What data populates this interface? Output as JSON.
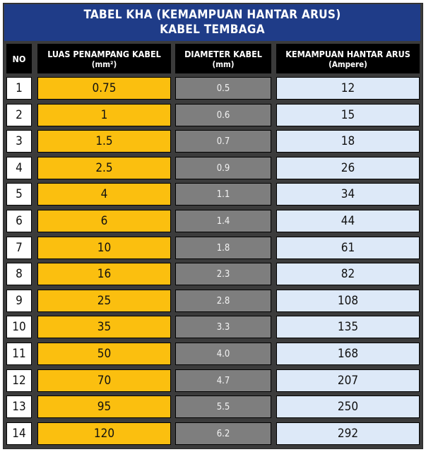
{
  "title": {
    "line1": "TABEL KHA (KEMAMPUAN HANTAR ARUS)",
    "line2": "KABEL TEMBAGA"
  },
  "headers": {
    "no": "NO",
    "luas": "LUAS PENAMPANG KABEL",
    "luas_unit": "(mm²)",
    "diameter": "DIAMETER KABEL",
    "diameter_unit": "(mm)",
    "kha": "KEMAMPUAN HANTAR ARUS",
    "kha_unit": "(Ampere)"
  },
  "colors": {
    "title_bg": "#1f3c88",
    "header_bg": "#000000",
    "luas_col": "#fbbf0f",
    "diameter_col": "#7e7e7e",
    "kha_col": "#dde9f8"
  },
  "rows": [
    {
      "no": "1",
      "luas": "0.75",
      "diameter": "0.5",
      "kha": "12"
    },
    {
      "no": "2",
      "luas": "1",
      "diameter": "0.6",
      "kha": "15"
    },
    {
      "no": "3",
      "luas": "1.5",
      "diameter": "0.7",
      "kha": "18"
    },
    {
      "no": "4",
      "luas": "2.5",
      "diameter": "0.9",
      "kha": "26"
    },
    {
      "no": "5",
      "luas": "4",
      "diameter": "1.1",
      "kha": "34"
    },
    {
      "no": "6",
      "luas": "6",
      "diameter": "1.4",
      "kha": "44"
    },
    {
      "no": "7",
      "luas": "10",
      "diameter": "1.8",
      "kha": "61"
    },
    {
      "no": "8",
      "luas": "16",
      "diameter": "2.3",
      "kha": "82"
    },
    {
      "no": "9",
      "luas": "25",
      "diameter": "2.8",
      "kha": "108"
    },
    {
      "no": "10",
      "luas": "35",
      "diameter": "3.3",
      "kha": "135"
    },
    {
      "no": "11",
      "luas": "50",
      "diameter": "4.0",
      "kha": "168"
    },
    {
      "no": "12",
      "luas": "70",
      "diameter": "4.7",
      "kha": "207"
    },
    {
      "no": "13",
      "luas": "95",
      "diameter": "5.5",
      "kha": "250"
    },
    {
      "no": "14",
      "luas": "120",
      "diameter": "6.2",
      "kha": "292"
    }
  ]
}
